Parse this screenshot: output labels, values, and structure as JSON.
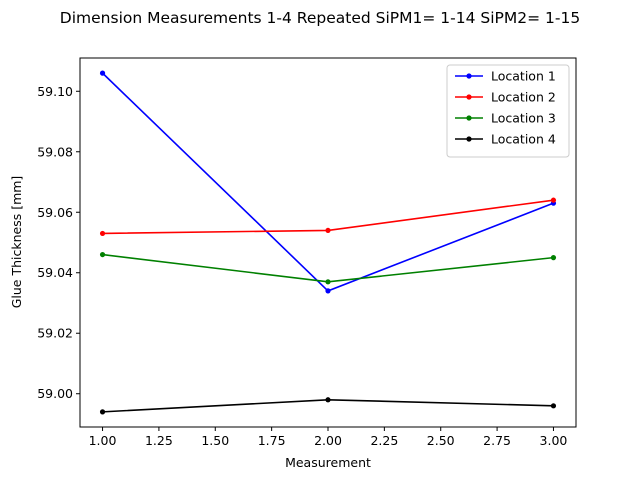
{
  "chart_data": {
    "type": "line",
    "title": "Dimension Measurements 1-4 Repeated SiPM1= 1-14 SiPM2= 1-15",
    "xlabel": "Measurement",
    "ylabel": "Glue Thickness [mm]",
    "xlim": [
      0.9,
      3.1
    ],
    "ylim": [
      58.989,
      59.111
    ],
    "x_ticks": [
      1.0,
      1.25,
      1.5,
      1.75,
      2.0,
      2.25,
      2.5,
      2.75,
      3.0
    ],
    "x_tick_labels": [
      "1.00",
      "1.25",
      "1.50",
      "1.75",
      "2.00",
      "2.25",
      "2.50",
      "2.75",
      "3.00"
    ],
    "y_ticks": [
      59.0,
      59.02,
      59.04,
      59.06,
      59.08,
      59.1
    ],
    "y_tick_labels": [
      "59.00",
      "59.02",
      "59.04",
      "59.06",
      "59.08",
      "59.10"
    ],
    "grid": false,
    "legend_position": "top-right",
    "x": [
      1,
      2,
      3
    ],
    "series": [
      {
        "name": "Location 1",
        "color": "#0000ff",
        "values": [
          59.106,
          59.034,
          59.063
        ]
      },
      {
        "name": "Location 2",
        "color": "#ff0000",
        "values": [
          59.053,
          59.054,
          59.064
        ]
      },
      {
        "name": "Location 3",
        "color": "#008000",
        "values": [
          59.046,
          59.037,
          59.045
        ]
      },
      {
        "name": "Location 4",
        "color": "#000000",
        "values": [
          58.994,
          58.998,
          58.996
        ]
      }
    ]
  }
}
